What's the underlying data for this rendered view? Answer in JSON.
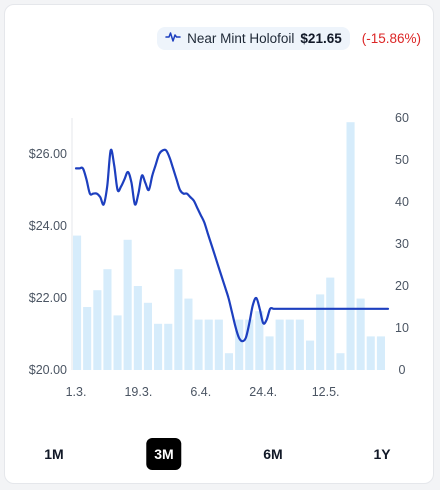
{
  "legend": {
    "icon": "line-chart-icon",
    "name": "Near Mint Holofoil",
    "price": "$21.65",
    "change": "(-15.86%)"
  },
  "colors": {
    "line": "#1d3fbf",
    "bar": "#d6ecfb",
    "change": "#dc2626",
    "active_range": "#000000"
  },
  "ranges": [
    {
      "label": "1M",
      "active": false
    },
    {
      "label": "3M",
      "active": true
    },
    {
      "label": "6M",
      "active": false
    },
    {
      "label": "1Y",
      "active": false
    }
  ],
  "chart_data": {
    "type": "line",
    "series": [
      {
        "name": "Near Mint Holofoil",
        "axis": "left",
        "type": "line",
        "x": [
          0,
          1,
          2,
          3,
          4,
          5,
          6,
          7,
          8,
          9,
          10,
          11,
          12,
          13,
          14,
          15,
          16,
          17,
          18,
          19,
          20,
          21,
          22,
          23,
          24,
          25,
          26,
          27,
          28,
          29,
          30,
          31,
          32,
          33,
          34,
          35,
          36,
          37,
          38,
          39,
          40,
          41,
          42,
          43,
          44,
          45,
          46,
          47,
          48,
          49,
          50,
          51,
          52,
          53,
          54,
          55,
          56,
          57,
          58,
          59,
          60,
          61,
          62,
          63,
          64,
          65,
          66,
          67,
          68,
          69,
          70,
          71,
          72,
          73,
          74,
          75,
          76,
          77,
          78,
          79,
          80,
          81,
          82,
          83,
          84,
          85,
          86,
          87,
          88,
          89,
          90
        ],
        "values": [
          25.6,
          25.6,
          25.6,
          25.3,
          24.9,
          24.9,
          24.9,
          24.8,
          24.6,
          25.1,
          26.1,
          25.7,
          25.0,
          25.1,
          25.3,
          25.5,
          25.2,
          24.6,
          24.9,
          25.4,
          25.2,
          25.0,
          25.4,
          25.7,
          26.0,
          26.1,
          26.1,
          25.9,
          25.6,
          25.3,
          25.0,
          24.9,
          24.9,
          24.8,
          24.7,
          24.5,
          24.3,
          24.1,
          23.8,
          23.5,
          23.2,
          22.9,
          22.6,
          22.3,
          22.0,
          21.6,
          21.2,
          20.9,
          20.8,
          20.9,
          21.3,
          21.8,
          22.0,
          21.7,
          21.3,
          21.4,
          21.7,
          21.7,
          21.7,
          21.7,
          21.7,
          21.7,
          21.7,
          21.7,
          21.7,
          21.7,
          21.7,
          21.7,
          21.7,
          21.7,
          21.7,
          21.7,
          21.7,
          21.7,
          21.7,
          21.7,
          21.7,
          21.7,
          21.7,
          21.7,
          21.7,
          21.7,
          21.7,
          21.7,
          21.7,
          21.7,
          21.7,
          21.7,
          21.7,
          21.7,
          21.7
        ]
      },
      {
        "name": "Volume",
        "axis": "right",
        "type": "bar",
        "values": [
          32,
          15,
          19,
          24,
          13,
          31,
          20,
          16,
          11,
          11,
          24,
          17,
          12,
          12,
          12,
          4,
          12,
          12,
          14,
          8,
          12,
          12,
          12,
          7,
          18,
          22,
          4,
          59,
          17,
          8,
          8
        ]
      }
    ],
    "x_tick_labels": [
      "1.3.",
      "19.3.",
      "6.4.",
      "24.4.",
      "12.5."
    ],
    "y_left": {
      "min": 20,
      "max": 27,
      "ticks": [
        "$20.00",
        "$22.00",
        "$24.00",
        "$26.00"
      ]
    },
    "y_right": {
      "min": 0,
      "max": 60,
      "ticks": [
        "0",
        "10",
        "20",
        "30",
        "40",
        "50",
        "60"
      ]
    },
    "grid": false,
    "legend_position": "top-right"
  }
}
